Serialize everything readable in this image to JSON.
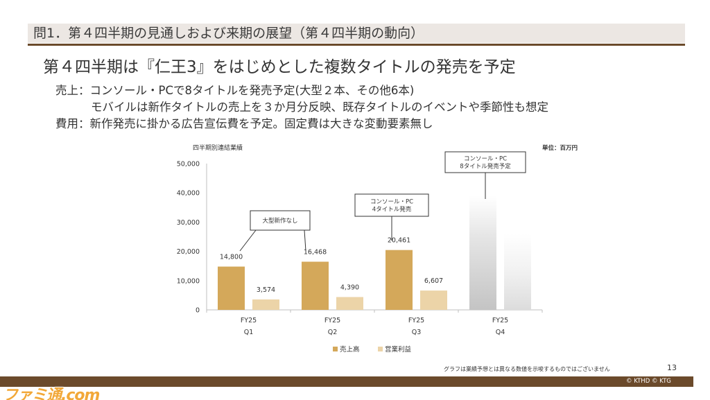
{
  "header": {
    "title": "問1．第４四半期の見通しおよび来期の展望（第４四半期の動向）"
  },
  "headline": "第４四半期は『仁王3』をはじめとした複数タイトルの発売を予定",
  "bullets": [
    "売上：コンソール・PCで8タイトルを発売予定(大型２本、その他6本)",
    "モバイルは新作タイトルの売上を３か月分反映、既存タイトルのイベントや季節性も想定",
    "費用：新作発売に掛かる広告宣伝費を予定。固定費は大きな変動要素無し"
  ],
  "chart_data": {
    "type": "bar",
    "title": "四半期別連結業績",
    "unit_label": "単位：百万円",
    "categories": [
      [
        "FY25",
        "Q1"
      ],
      [
        "FY25",
        "Q2"
      ],
      [
        "FY25",
        "Q3"
      ],
      [
        "FY25",
        "Q4"
      ]
    ],
    "series": [
      {
        "name": "売上高",
        "values": [
          14800,
          16468,
          20461,
          null
        ],
        "color": "#d4a85a"
      },
      {
        "name": "営業利益",
        "values": [
          3574,
          4390,
          6607,
          null
        ],
        "color": "#ecd4a8"
      }
    ],
    "data_labels": [
      [
        "14,800",
        "16,468",
        "20,461",
        ""
      ],
      [
        "3,574",
        "4,390",
        "6,607",
        ""
      ]
    ],
    "yticks": [
      "0",
      "10,000",
      "20,000",
      "30,000",
      "40,000",
      "50,000"
    ],
    "ylim": [
      0,
      50000
    ],
    "grid": false,
    "legend_position": "bottom",
    "annotations": [
      {
        "lines": [
          "大型新作なし"
        ]
      },
      {
        "lines": [
          "コンソール・PC",
          "4タイトル発売"
        ]
      },
      {
        "lines": [
          "コンソール・PC",
          "8タイトル発売予定"
        ]
      }
    ]
  },
  "footer": {
    "note": "グラフは業績予想とは異なる数値を示唆するものではございません",
    "page_number": "13",
    "copyright": "© KTHD © KTG",
    "watermark": "ファミ通.com"
  },
  "colors": {
    "brown": "#6b4a2b",
    "header_band": "#ece7e3"
  }
}
